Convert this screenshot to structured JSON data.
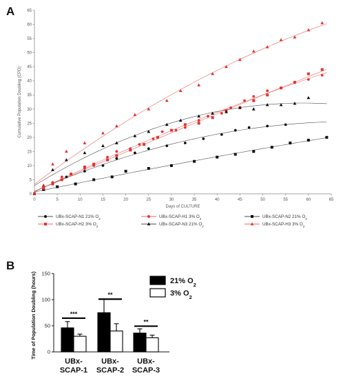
{
  "panel_a_label": "A",
  "panel_b_label": "B",
  "chart_data": [
    {
      "type": "scatter",
      "xlabel": "Days of CULTURE",
      "ylabel": "Cumulative Population Doubling (CPD)",
      "xlim": [
        0,
        65
      ],
      "ylim": [
        0,
        65
      ],
      "xticks": [
        0,
        5,
        10,
        15,
        20,
        25,
        30,
        35,
        40,
        45,
        50,
        55,
        60,
        65
      ],
      "yticks": [
        0,
        5,
        10,
        15,
        20,
        25,
        30,
        35,
        40,
        45,
        50,
        55,
        60,
        65
      ],
      "grid": false,
      "legend_position": "bottom",
      "trendlines": "polynomial fit per series",
      "series": [
        {
          "name": "UBx-SCAP-N1 21% O2",
          "color": "#111111",
          "marker": "circle",
          "x": [
            0,
            2,
            4,
            7,
            11,
            15,
            18,
            22,
            25,
            29,
            33,
            37,
            41,
            44,
            47,
            51,
            55
          ],
          "y": [
            0,
            2.5,
            4,
            6,
            8,
            10,
            12.5,
            14.5,
            16,
            17,
            18,
            19.5,
            21,
            22.5,
            23.5,
            24,
            24.5
          ],
          "fit_end": 25.5
        },
        {
          "name": "UBx-SCAP-H1 3% O2",
          "color": "#e8312f",
          "marker": "circle",
          "x": [
            0,
            2,
            4,
            6,
            8,
            11,
            13,
            16,
            18,
            21,
            23,
            26,
            28,
            31,
            33,
            36,
            38,
            41,
            43,
            46,
            48,
            51,
            54,
            57,
            60,
            63
          ],
          "y": [
            0,
            2,
            4,
            6,
            7,
            9,
            10,
            13,
            15,
            16,
            17.5,
            19.5,
            22,
            22.5,
            23.5,
            26,
            27.5,
            28.5,
            30.5,
            33,
            34.5,
            36.5,
            37.5,
            39.5,
            40.5,
            42
          ],
          "fit_end": 42
        },
        {
          "name": "UBx-SCAP-N2 21% O2",
          "color": "#111111",
          "marker": "square",
          "x": [
            0,
            2,
            5,
            9,
            13,
            17,
            20,
            25,
            30,
            35,
            40,
            44,
            48,
            52,
            56,
            60,
            64
          ],
          "y": [
            0,
            1.5,
            2.5,
            3.5,
            5,
            6,
            8,
            9,
            10,
            11.5,
            13,
            14,
            15,
            16.5,
            18,
            19,
            20
          ],
          "fit_end": 20.5
        },
        {
          "name": "UBx-SCAP-H2 3% O2",
          "color": "#e8312f",
          "marker": "square",
          "x": [
            0,
            2,
            4,
            6,
            8,
            11,
            13,
            16,
            18,
            21,
            24,
            27,
            30,
            33,
            36,
            39,
            42,
            45,
            48,
            51,
            54,
            57,
            60,
            63
          ],
          "y": [
            0,
            2,
            3.5,
            5,
            7,
            9.5,
            10.5,
            12,
            13.5,
            15.5,
            17.5,
            20,
            22.5,
            24.5,
            25,
            27,
            29.5,
            30.5,
            33,
            35,
            37.5,
            39.5,
            42.5,
            44
          ],
          "fit_end": 46
        },
        {
          "name": "UBx-SCAP-N3 21% O2",
          "color": "#111111",
          "marker": "triangle",
          "x": [
            0,
            2,
            4,
            7,
            11,
            15,
            18,
            22,
            25,
            29,
            32,
            36,
            39,
            42,
            45,
            48,
            51,
            54,
            57,
            60
          ],
          "y": [
            0,
            3,
            8.5,
            12,
            14.5,
            17,
            18,
            20.5,
            22,
            24.5,
            26,
            27.5,
            28.5,
            29,
            30.5,
            30,
            31.5,
            31.5,
            32,
            34
          ],
          "fit_end": 30
        },
        {
          "name": "UBx-SCAP-H3 3% O2",
          "color": "#e8312f",
          "marker": "triangle",
          "x": [
            0,
            2,
            4,
            7,
            11,
            15,
            18,
            22,
            25,
            29,
            32,
            36,
            39,
            42,
            45,
            48,
            51,
            54,
            57,
            60,
            63
          ],
          "y": [
            0,
            3,
            10.5,
            15,
            18,
            21.5,
            24,
            28,
            30,
            33,
            36.5,
            38.5,
            42.5,
            45,
            47.5,
            50.5,
            52,
            54.5,
            55.5,
            58,
            60.5
          ],
          "fit_end": 60
        }
      ]
    },
    {
      "type": "bar",
      "ylabel": "Time of Population Doubling (hours)",
      "ylim": [
        0,
        150
      ],
      "yticks": [
        0,
        50,
        100,
        150
      ],
      "categories": [
        "UBx-SCAP-1",
        "UBx-SCAP-2",
        "UBx-SCAP-3"
      ],
      "category_lines": [
        [
          "UBx-",
          "SCAP-1"
        ],
        [
          "UBx-",
          "SCAP-2"
        ],
        [
          "UBx-",
          "SCAP-3"
        ]
      ],
      "legend_position": "top-right",
      "series": [
        {
          "name": "21% O2",
          "color": "#000000",
          "values": [
            46,
            75,
            36
          ],
          "errors": [
            12,
            26,
            8
          ]
        },
        {
          "name": "3% O2",
          "color": "#ffffff",
          "values": [
            30,
            40,
            27
          ],
          "errors": [
            4,
            14,
            5
          ]
        }
      ],
      "significance": [
        "***",
        "**",
        "**"
      ]
    }
  ]
}
